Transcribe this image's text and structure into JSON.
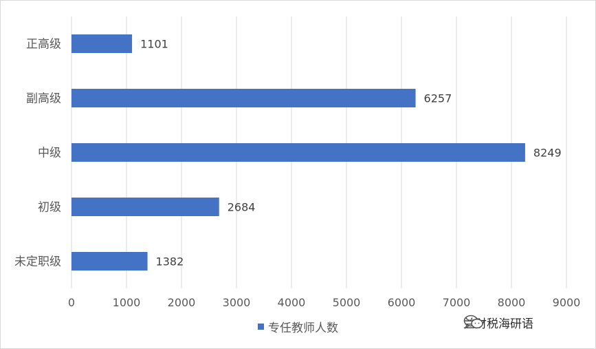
{
  "chart_data": {
    "type": "bar",
    "orientation": "horizontal",
    "categories": [
      "正高级",
      "副高级",
      "中级",
      "初级",
      "未定职级"
    ],
    "series": [
      {
        "name": "专任教师人数",
        "values": [
          1101,
          6257,
          8249,
          2684,
          1382
        ],
        "color": "#4472c4"
      }
    ],
    "xlim": [
      0,
      9000
    ],
    "xticks": [
      0,
      1000,
      2000,
      3000,
      4000,
      5000,
      6000,
      7000,
      8000,
      9000
    ],
    "grid": "vertical",
    "legend_position": "bottom",
    "data_labels": true
  },
  "watermark": {
    "icon": "wechat-icon",
    "text": "兰财税海研语"
  }
}
